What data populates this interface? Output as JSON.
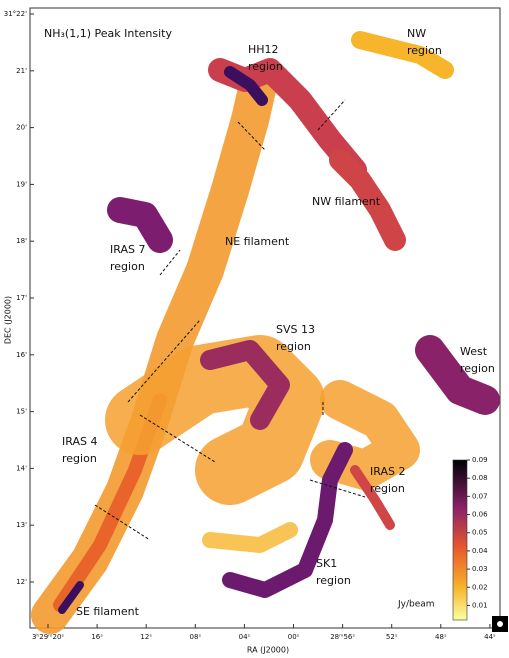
{
  "map": {
    "title": "NH₃(1,1) Peak Intensity",
    "x_axis_label": "RA (J2000)",
    "y_axis_label": "DEC (J2000)",
    "dec_ticks": [
      "31°22'",
      "21'",
      "20'",
      "19'",
      "18'",
      "17'",
      "16'",
      "15'",
      "14'",
      "13'",
      "12'"
    ],
    "ra_ticks": [
      "3ʰ29ᵐ20ˢ",
      "16ˢ",
      "12ˢ",
      "08ˢ",
      "04ˢ",
      "00ˢ",
      "28ᵐ56ˢ",
      "52ˢ",
      "48ˢ",
      "44ˢ"
    ],
    "regions": [
      "HH12 region",
      "NW region",
      "NW filament",
      "IRAS 7 region",
      "NE filament",
      "SVS 13 region",
      "West region",
      "IRAS 4 region",
      "IRAS 2 region",
      "SK1 region",
      "SE filament"
    ],
    "colorbar": {
      "lim": [
        0.002,
        0.09
      ],
      "ticks": [
        0.01,
        0.02,
        0.03,
        0.04,
        0.05,
        0.06,
        0.07,
        0.08,
        0.09
      ],
      "unit": "Jy/beam"
    }
  }
}
